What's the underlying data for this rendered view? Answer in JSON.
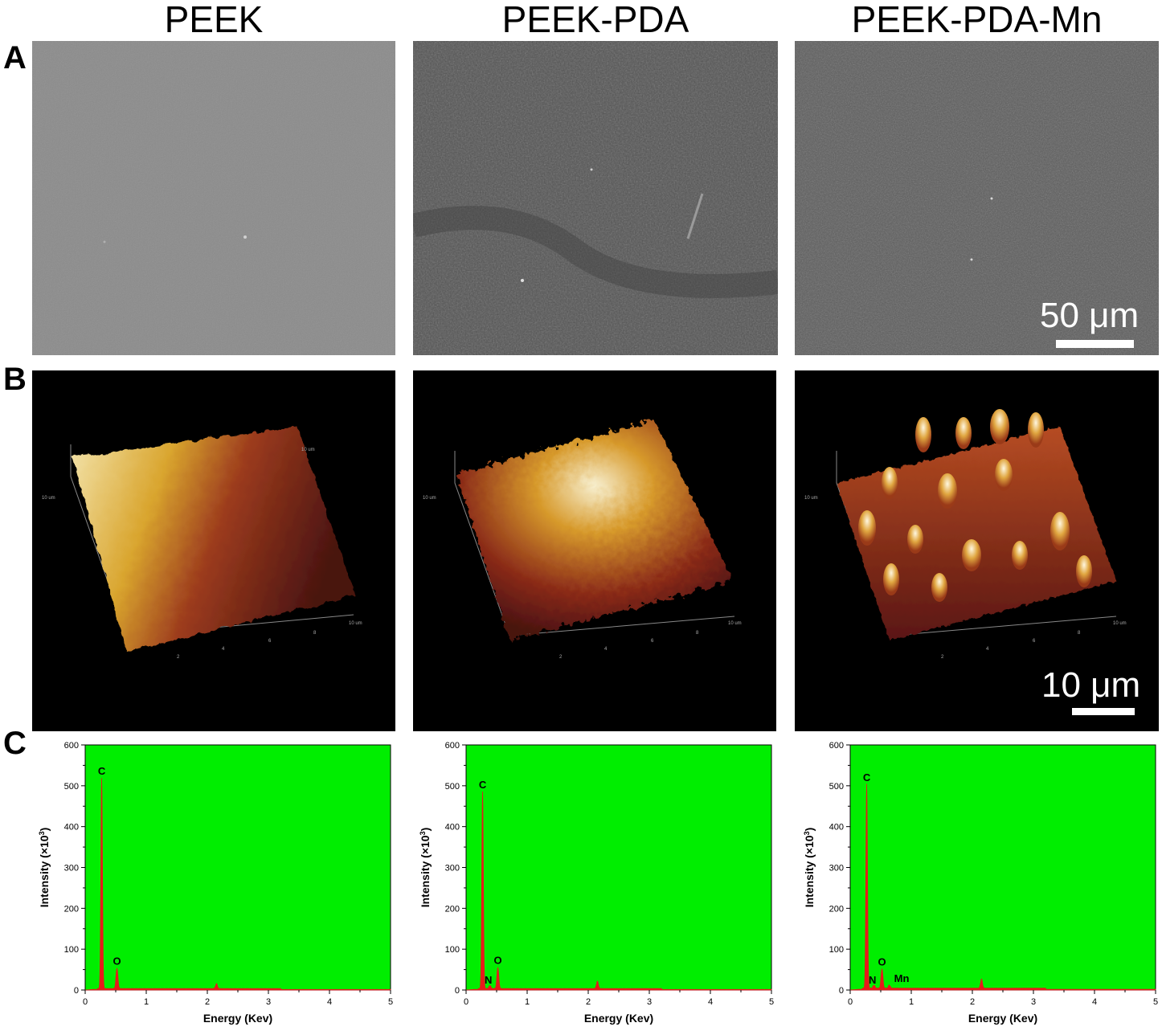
{
  "figure": {
    "columns": [
      "PEEK",
      "PEEK-PDA",
      "PEEK-PDA-Mn"
    ],
    "row_labels": [
      "A",
      "B",
      "C"
    ],
    "sem": {
      "scale_bar_label": "50 μm"
    },
    "afm": {
      "scale_bar_label": "10 μm",
      "axis_ticks": [
        "2",
        "4",
        "6",
        "8"
      ],
      "axis_end_label": "10 um"
    },
    "eds": {
      "xlabel": "Energy (Kev)",
      "ylabel_main": "Intensity (×10",
      "ylabel_sup": "3",
      "ylabel_end": ")"
    }
  },
  "colors": {
    "eds_background": "#00ee00",
    "eds_signal": "#e81a1a"
  },
  "chart_data": [
    {
      "type": "area",
      "panel": "PEEK",
      "xlabel": "Energy (Kev)",
      "ylabel": "Intensity (×10³)",
      "xlim": [
        0,
        5
      ],
      "ylim": [
        0,
        600
      ],
      "xticks": [
        0,
        1,
        2,
        3,
        4,
        5
      ],
      "yticks": [
        0,
        100,
        200,
        300,
        400,
        500,
        600
      ],
      "peaks": [
        {
          "label": "C",
          "x": 0.27,
          "y": 515
        },
        {
          "label": "O",
          "x": 0.52,
          "y": 50
        },
        {
          "label": "",
          "x": 2.15,
          "y": 12
        }
      ],
      "baseline": 4
    },
    {
      "type": "area",
      "panel": "PEEK-PDA",
      "xlabel": "Energy (Kev)",
      "ylabel": "Intensity (×10³)",
      "xlim": [
        0,
        5
      ],
      "ylim": [
        0,
        600
      ],
      "xticks": [
        0,
        1,
        2,
        3,
        4,
        5
      ],
      "yticks": [
        0,
        100,
        200,
        300,
        400,
        500,
        600
      ],
      "peaks": [
        {
          "label": "C",
          "x": 0.27,
          "y": 482
        },
        {
          "label": "N",
          "x": 0.39,
          "y": 8
        },
        {
          "label": "O",
          "x": 0.52,
          "y": 52
        },
        {
          "label": "",
          "x": 2.15,
          "y": 18
        }
      ],
      "baseline": 4
    },
    {
      "type": "area",
      "panel": "PEEK-PDA-Mn",
      "xlabel": "Energy (Kev)",
      "ylabel": "Intensity (×10³)",
      "xlim": [
        0,
        5
      ],
      "ylim": [
        0,
        600
      ],
      "xticks": [
        0,
        1,
        2,
        3,
        4,
        5
      ],
      "yticks": [
        0,
        100,
        200,
        300,
        400,
        500,
        600
      ],
      "peaks": [
        {
          "label": "C",
          "x": 0.27,
          "y": 500
        },
        {
          "label": "N",
          "x": 0.39,
          "y": 8
        },
        {
          "label": "O",
          "x": 0.52,
          "y": 48
        },
        {
          "label": "Mn",
          "x": 0.64,
          "y": 8
        },
        {
          "label": "",
          "x": 2.15,
          "y": 22
        }
      ],
      "baseline": 5
    }
  ]
}
